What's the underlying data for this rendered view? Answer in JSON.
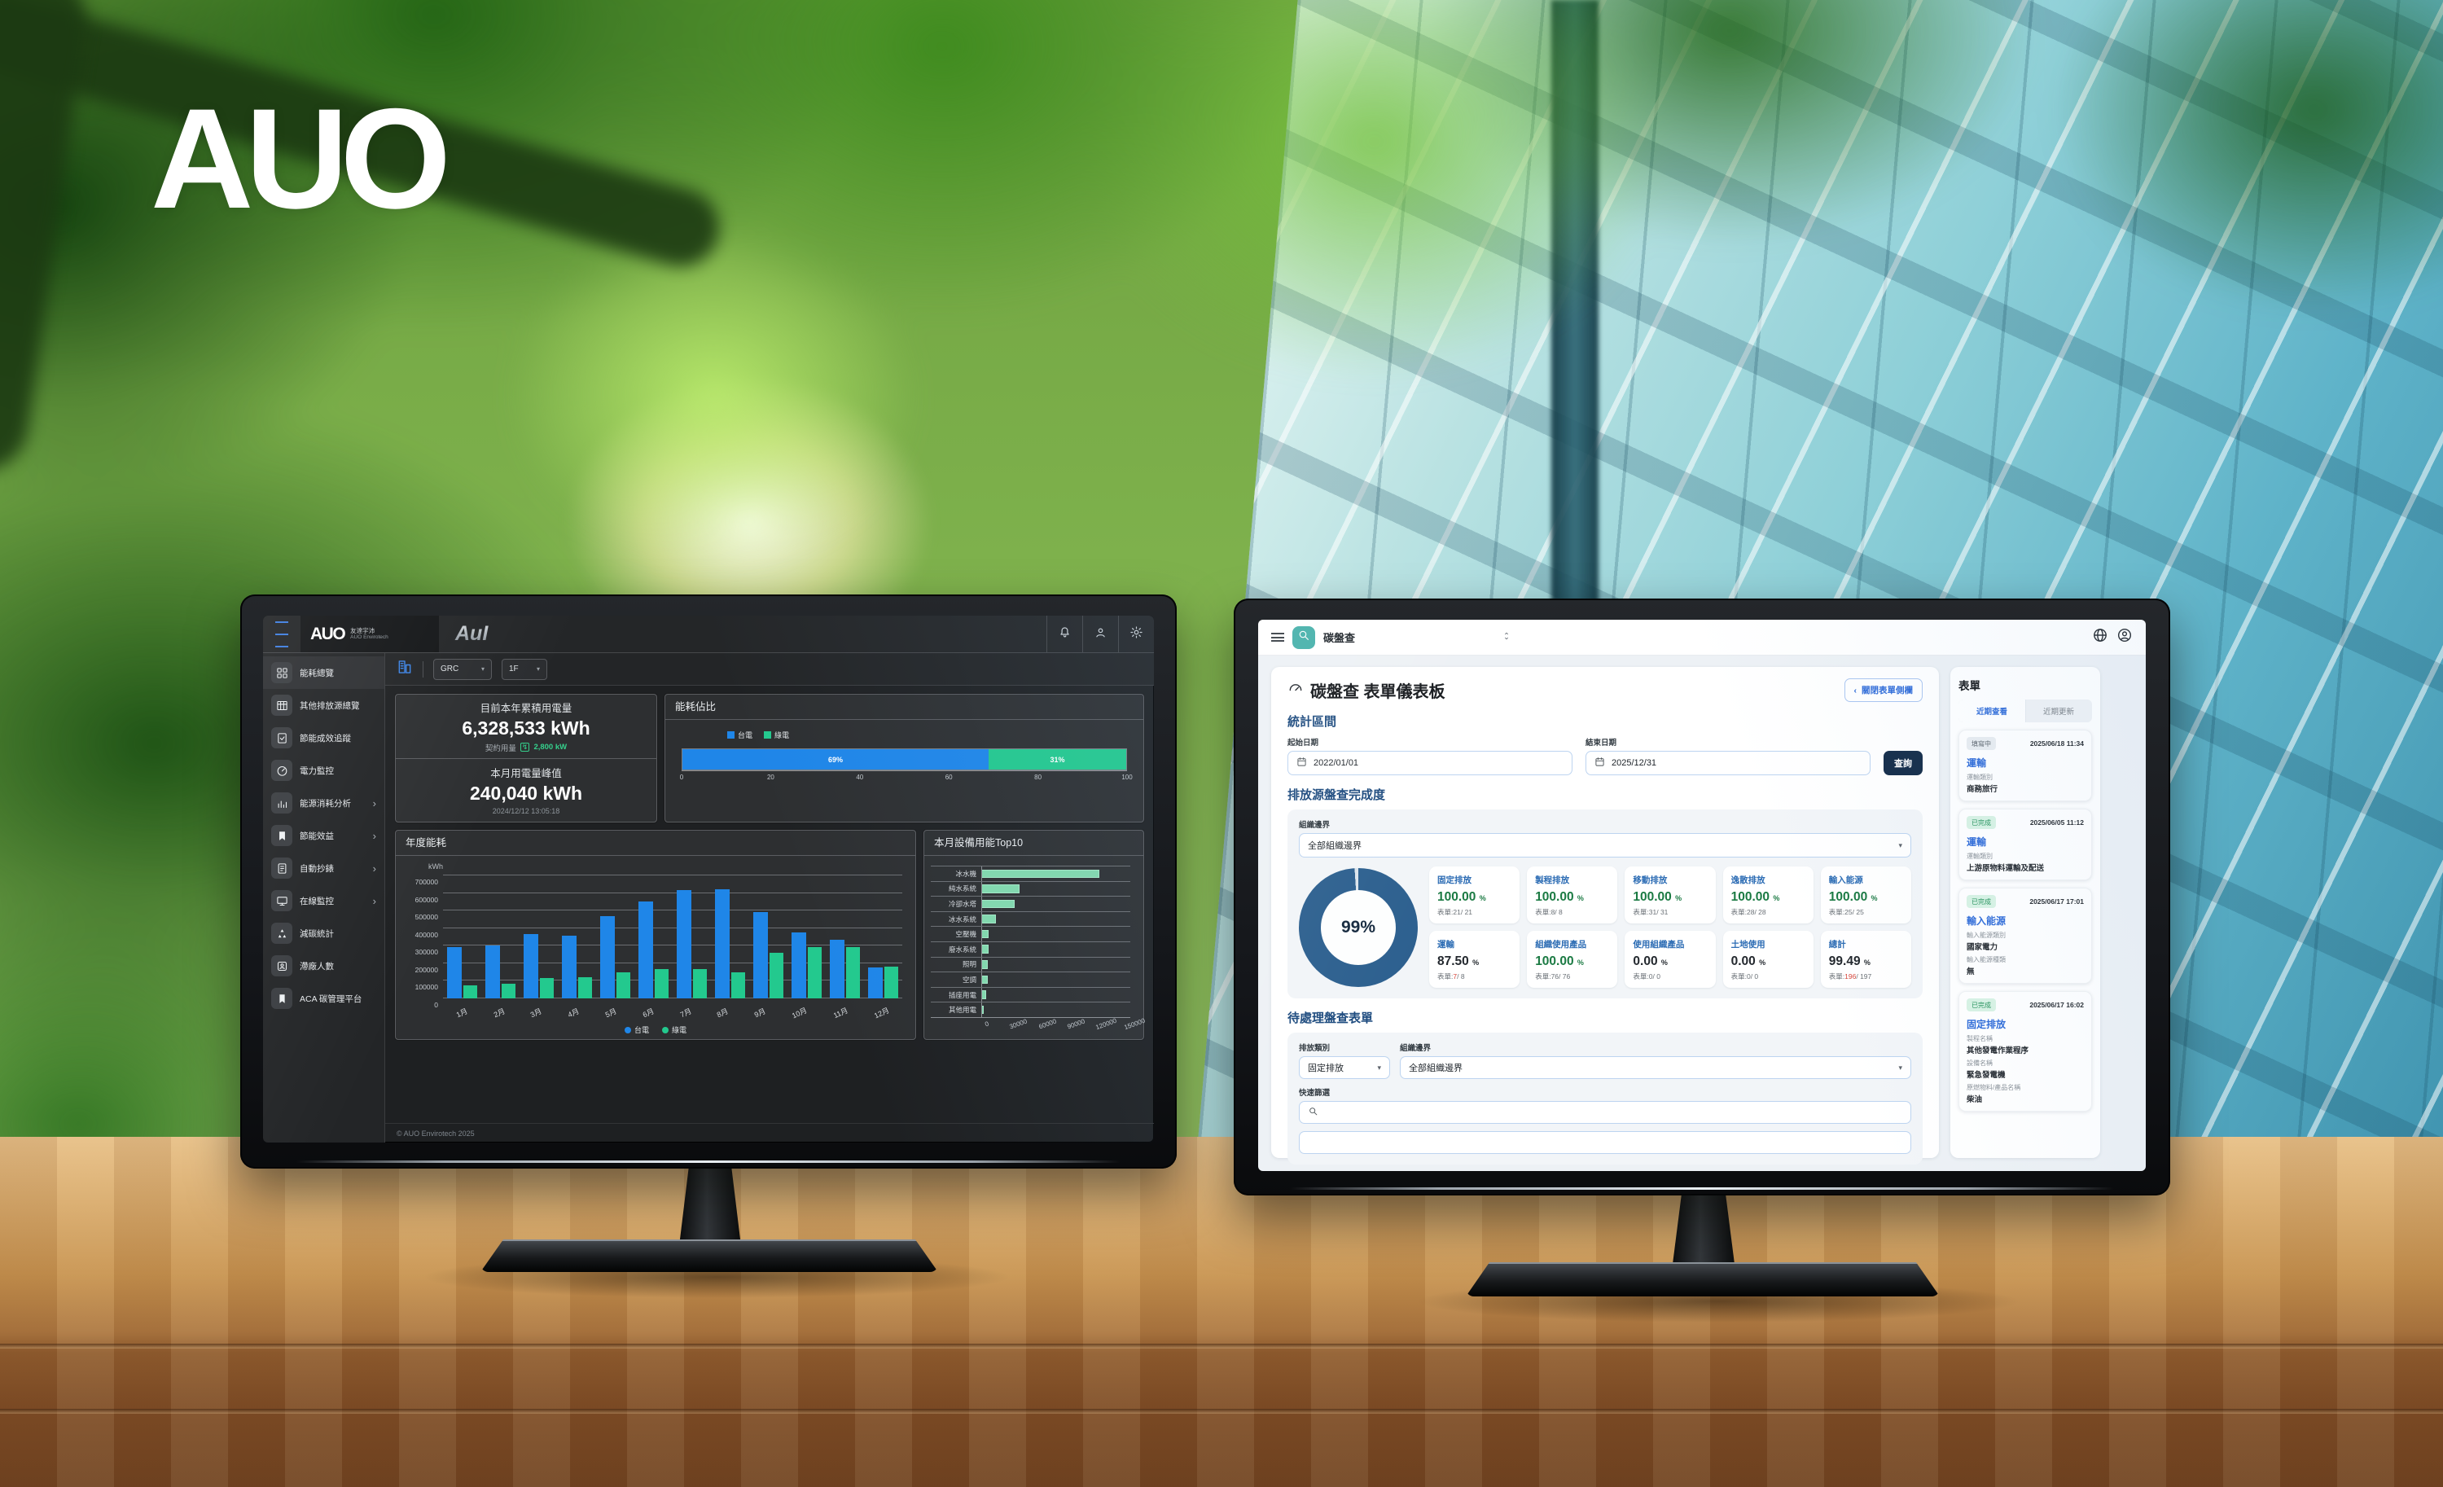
{
  "scene": {
    "brand": "AUO"
  },
  "colors": {
    "bar_blue": "#1f86e8",
    "bar_green": "#23c98e",
    "mint": "#82d9ad",
    "primary_blue": "#2c6cb4",
    "navy": "#142c49",
    "teal": "#47b1ab",
    "green_text": "#1b7a43",
    "red_text": "#d6453a",
    "donut_blue": "#2d608f"
  },
  "left": {
    "topbar": {
      "brand": "AUO",
      "brand_sub": "友達宇沛",
      "brand_sub_en": "AUO Envirotech",
      "product_logo": "AuI"
    },
    "sidebar": [
      {
        "label": "能耗總覽",
        "icon": "grid",
        "active": true
      },
      {
        "label": "其他排放源總覽",
        "icon": "table"
      },
      {
        "label": "節能成效追蹤",
        "icon": "checkdoc"
      },
      {
        "label": "電力監控",
        "icon": "gauge"
      },
      {
        "label": "能源消耗分析",
        "icon": "bars",
        "expandable": true
      },
      {
        "label": "節能效益",
        "icon": "tag",
        "expandable": true
      },
      {
        "label": "自動抄錶",
        "icon": "meter",
        "expandable": true
      },
      {
        "label": "在線監控",
        "icon": "monitor",
        "expandable": true
      },
      {
        "label": "減碳統計",
        "icon": "recycle"
      },
      {
        "label": "滯廠人數",
        "icon": "person-badge"
      },
      {
        "label": "ACA 碳管理平台",
        "icon": "bookmark"
      }
    ],
    "filters": {
      "site": "GRC",
      "floor": "1F"
    },
    "cards": [
      {
        "title": "目前本年累積用電量",
        "value": "6,328,533 kWh",
        "sub_label": "契約用量",
        "sub_value": "2,800 kW"
      },
      {
        "title": "本月用電量峰值",
        "value": "240,040 kWh",
        "timestamp": "2024/12/12 13:05:18"
      }
    ],
    "ratio_chart": {
      "type": "bar",
      "title": "能耗佔比",
      "legend": [
        "台電",
        "綠電"
      ],
      "values": [
        69,
        31
      ],
      "labels": [
        "69%",
        "31%"
      ],
      "ticks": [
        0,
        20,
        40,
        60,
        80,
        100
      ]
    },
    "annual_chart": {
      "type": "bar",
      "title": "年度能耗",
      "unit": "kWh",
      "ymax": 700000,
      "ytick_step": 100000,
      "months": [
        "1月",
        "2月",
        "3月",
        "4月",
        "5月",
        "6月",
        "7月",
        "8月",
        "9月",
        "10月",
        "11月",
        "12月"
      ],
      "series": [
        {
          "name": "台電",
          "color": "#1f86e8",
          "values": [
            290000,
            300000,
            365000,
            355000,
            470000,
            550000,
            615000,
            620000,
            490000,
            375000,
            335000,
            175000
          ]
        },
        {
          "name": "綠電",
          "color": "#23c98e",
          "values": [
            75000,
            82000,
            115000,
            120000,
            150000,
            168000,
            168000,
            148000,
            260000,
            290000,
            290000,
            182000
          ]
        }
      ]
    },
    "top10_chart": {
      "type": "bar",
      "title": "本月設備用能Top10",
      "xmax": 150000,
      "categories": [
        "冰水機",
        "純水系統",
        "冷卻水塔",
        "冰水系統",
        "空壓機",
        "廢水系統",
        "照明",
        "空調",
        "插座用電",
        "其他用電"
      ],
      "values": [
        119000,
        38000,
        33000,
        14000,
        7000,
        7000,
        5500,
        5500,
        4500,
        2000
      ],
      "xticks": [
        0,
        30000,
        60000,
        90000,
        120000,
        150000
      ]
    },
    "footer": "© AUO Envirotech 2025"
  },
  "right": {
    "topbar": {
      "app": "碳盤查"
    },
    "page": {
      "title": "碳盤查 表單儀表板",
      "close_panel": "關閉表單側欄",
      "close_chev": "‹"
    },
    "stats": {
      "title": "統計區間",
      "start_label": "起始日期",
      "start": "2022/01/01",
      "end_label": "結束日期",
      "end": "2025/12/31",
      "search": "查詢"
    },
    "completion": {
      "title": "排放源盤查完成度",
      "boundary_label": "組織邊界",
      "boundary": "全部組織邊界",
      "donut_label": "99%",
      "donut_value": 99,
      "form_word": "表單:",
      "cards": [
        {
          "title": "固定排放",
          "percent": "100.00",
          "done": "21",
          "total": "21",
          "green": true,
          "done_red": false
        },
        {
          "title": "製程排放",
          "percent": "100.00",
          "done": "8",
          "total": "8",
          "green": true,
          "done_red": false
        },
        {
          "title": "移動排放",
          "percent": "100.00",
          "done": "31",
          "total": "31",
          "green": true,
          "done_red": false
        },
        {
          "title": "逸散排放",
          "percent": "100.00",
          "done": "28",
          "total": "28",
          "green": true,
          "done_red": false
        },
        {
          "title": "輸入能源",
          "percent": "100.00",
          "done": "25",
          "total": "25",
          "green": true,
          "done_red": false
        },
        {
          "title": "運輸",
          "percent": "87.50",
          "done": "7",
          "total": "8",
          "green": false,
          "done_red": true
        },
        {
          "title": "組織使用產品",
          "percent": "100.00",
          "done": "76",
          "total": "76",
          "green": true,
          "done_red": false
        },
        {
          "title": "使用組織產品",
          "percent": "0.00",
          "done": "0",
          "total": "0",
          "green": false,
          "done_red": false
        },
        {
          "title": "土地使用",
          "percent": "0.00",
          "done": "0",
          "total": "0",
          "green": false,
          "done_red": false
        },
        {
          "title": "總計",
          "percent": "99.49",
          "done": "196",
          "total": "197",
          "green": false,
          "done_red": true
        }
      ]
    },
    "pending": {
      "title": "待處理盤查表單",
      "category_label": "排放類別",
      "category": "固定排放",
      "boundary_label": "組織邊界",
      "boundary": "全部組織邊界",
      "quick_label": "快速篩選"
    },
    "panel": {
      "title": "表單",
      "tabs": [
        "近期查看",
        "近期更新"
      ],
      "cards": [
        {
          "status": "填寫中",
          "time": "2025/06/18 11:34",
          "title": "運輸",
          "fields": [
            {
              "label": "運輸類別",
              "value": "商務旅行"
            }
          ]
        },
        {
          "status": "已完成",
          "time": "2025/06/05 11:12",
          "title": "運輸",
          "fields": [
            {
              "label": "運輸類別",
              "value": "上游原物料運輸及配送"
            }
          ]
        },
        {
          "status": "已完成",
          "time": "2025/06/17 17:01",
          "title": "輸入能源",
          "fields": [
            {
              "label": "輸入能源類別",
              "value": "國家電力"
            },
            {
              "label": "輸入能源種類",
              "value": "無"
            }
          ]
        },
        {
          "status": "已完成",
          "time": "2025/06/17 16:02",
          "title": "固定排放",
          "fields": [
            {
              "label": "製程名稱",
              "value": "其他發電作業程序"
            },
            {
              "label": "設備名稱",
              "value": "緊急發電機"
            },
            {
              "label": "原燃物料/產品名稱",
              "value": "柴油"
            }
          ]
        }
      ]
    }
  }
}
